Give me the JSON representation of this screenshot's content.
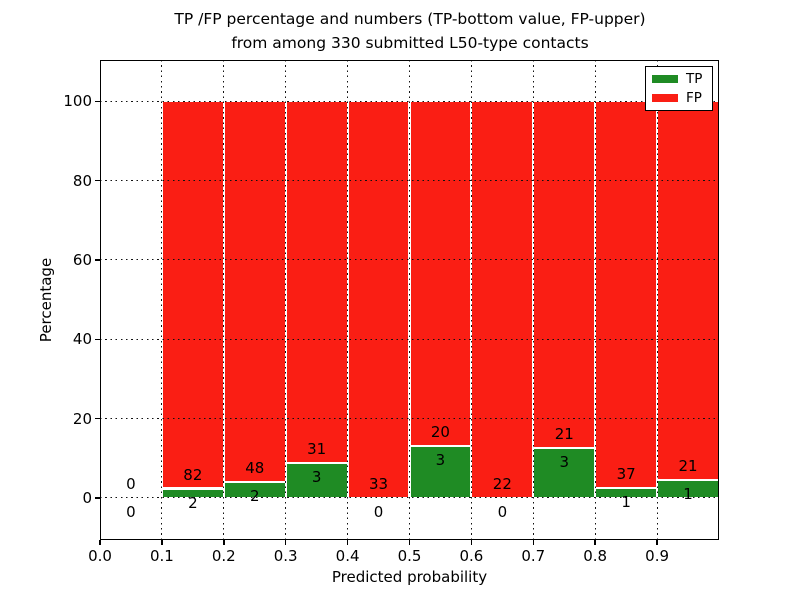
{
  "title": {
    "line1": "TP /FP percentage and numbers (TP-bottom value, FP-upper)",
    "line2": "from among 330 submitted L50-type contacts"
  },
  "chart_data": {
    "type": "bar",
    "stacked": true,
    "title": "TP /FP percentage and numbers (TP-bottom value, FP-upper) from among 330 submitted L50-type contacts",
    "xlabel": "Predicted probability",
    "ylabel": "Percentage",
    "xlim": [
      0.0,
      1.0
    ],
    "ylim": [
      -10.6,
      110.4
    ],
    "x_tick_labels": [
      "0.0",
      "0.1",
      "0.2",
      "0.3",
      "0.4",
      "0.5",
      "0.6",
      "0.7",
      "0.8",
      "0.9"
    ],
    "x_tick_values": [
      0.0,
      0.1,
      0.2,
      0.3,
      0.4,
      0.5,
      0.6,
      0.7,
      0.8,
      0.9
    ],
    "y_tick_values": [
      0,
      20,
      40,
      60,
      80,
      100
    ],
    "grid": "dotted, both axes, drawn over bars",
    "total_contacts": 330,
    "legend": {
      "position": "upper right",
      "entries": [
        {
          "label": "TP",
          "color": "#1f8b24"
        },
        {
          "label": "FP",
          "color": "#fa1e14"
        }
      ]
    },
    "bins": [
      {
        "range": [
          0.0,
          0.1
        ],
        "tp": 0,
        "fp": 0
      },
      {
        "range": [
          0.1,
          0.2
        ],
        "tp": 2,
        "fp": 82
      },
      {
        "range": [
          0.2,
          0.3
        ],
        "tp": 2,
        "fp": 48
      },
      {
        "range": [
          0.3,
          0.4
        ],
        "tp": 3,
        "fp": 31
      },
      {
        "range": [
          0.4,
          0.5
        ],
        "tp": 0,
        "fp": 33
      },
      {
        "range": [
          0.5,
          0.6
        ],
        "tp": 3,
        "fp": 20
      },
      {
        "range": [
          0.6,
          0.7
        ],
        "tp": 0,
        "fp": 22
      },
      {
        "range": [
          0.7,
          0.8
        ],
        "tp": 3,
        "fp": 21
      },
      {
        "range": [
          0.8,
          0.9
        ],
        "tp": 1,
        "fp": 37
      },
      {
        "range": [
          0.9,
          1.0
        ],
        "tp": 1,
        "fp": 21
      }
    ]
  },
  "colors": {
    "tp_green": "#1f8b24",
    "fp_red": "#fa1e14",
    "background": "#ffffff",
    "text": "#000000",
    "grid": "#111111"
  }
}
